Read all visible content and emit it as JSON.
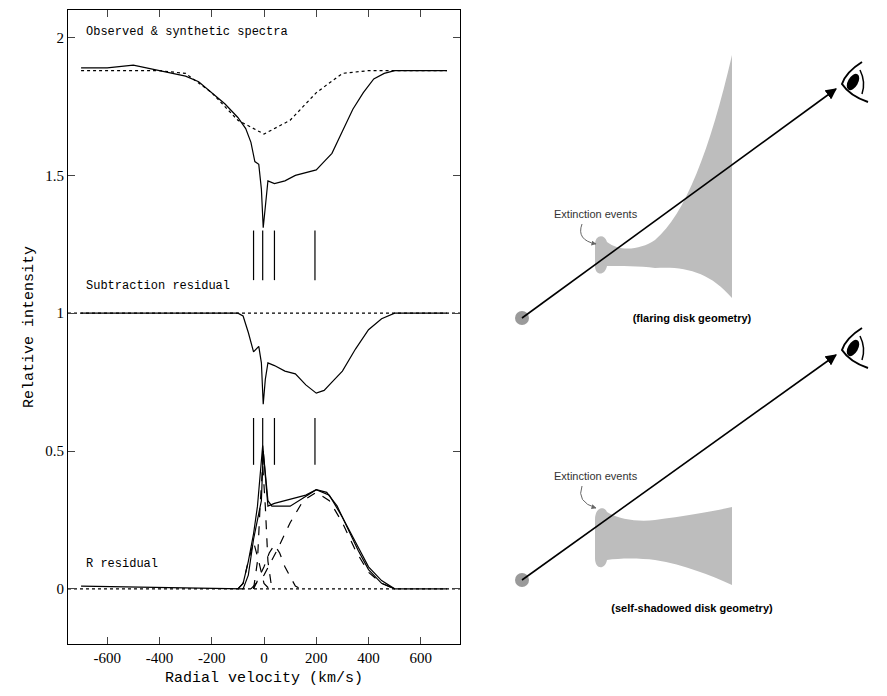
{
  "chart_data": {
    "type": "line",
    "xlabel": "Radial velocity (km/s)",
    "ylabel": "Relative intensity",
    "xlim": [
      -750,
      750
    ],
    "xticks": [
      -600,
      -400,
      -200,
      0,
      200,
      400,
      600
    ],
    "ylim": [
      -0.2,
      2.1
    ],
    "yticks": [
      0,
      0.5,
      1,
      1.5,
      2
    ],
    "grid": false,
    "annotations": [
      "Observed & synthetic spectra",
      "Subtraction residual",
      "R residual"
    ],
    "markers": {
      "x": [
        -40,
        -5,
        40,
        195
      ],
      "spans": [
        [
          1.12,
          1.3
        ],
        [
          0.45,
          0.62
        ]
      ]
    },
    "series": [
      {
        "color": "#000000",
        "line_style": "solid",
        "x": [
          -700,
          -600,
          -500,
          -400,
          -300,
          -250,
          -200,
          -150,
          -100,
          -70,
          -50,
          -35,
          -20,
          -10,
          -3,
          5,
          15,
          40,
          80,
          120,
          160,
          200,
          230,
          260,
          300,
          340,
          380,
          420,
          460,
          500,
          600,
          700
        ],
        "values": [
          1.89,
          1.89,
          1.9,
          1.88,
          1.86,
          1.84,
          1.8,
          1.76,
          1.71,
          1.67,
          1.62,
          1.55,
          1.54,
          1.45,
          1.31,
          1.4,
          1.48,
          1.47,
          1.48,
          1.5,
          1.51,
          1.52,
          1.55,
          1.58,
          1.66,
          1.74,
          1.8,
          1.85,
          1.87,
          1.88,
          1.88,
          1.88
        ]
      },
      {
        "color": "#000000",
        "line_style": "dotted",
        "x": [
          -700,
          -400,
          -300,
          -200,
          -100,
          0,
          100,
          200,
          300,
          400,
          700
        ],
        "values": [
          1.88,
          1.88,
          1.87,
          1.8,
          1.7,
          1.65,
          1.7,
          1.8,
          1.87,
          1.88,
          1.88
        ]
      },
      {
        "color": "#000000",
        "line_style": "solid",
        "x": [
          -700,
          -100,
          -80,
          -60,
          -40,
          -20,
          -10,
          -3,
          5,
          15,
          40,
          80,
          120,
          160,
          200,
          230,
          260,
          300,
          350,
          400,
          450,
          500,
          700
        ],
        "values": [
          1.0,
          1.0,
          0.99,
          0.93,
          0.86,
          0.88,
          0.82,
          0.67,
          0.76,
          0.82,
          0.81,
          0.79,
          0.78,
          0.74,
          0.71,
          0.72,
          0.75,
          0.79,
          0.87,
          0.94,
          0.98,
          1.0,
          1.0
        ]
      },
      {
        "color": "#000000",
        "line_style": "dotted",
        "x": [
          -750,
          750
        ],
        "values": [
          1,
          1
        ]
      },
      {
        "color": "#000000",
        "line_style": "solid",
        "x": [
          -700,
          -80,
          -60,
          -40,
          -25,
          -10,
          -3,
          5,
          15,
          40,
          80,
          120,
          160,
          200,
          240,
          280,
          320,
          360,
          400,
          450,
          500,
          700
        ],
        "values": [
          0.01,
          0.0,
          0.05,
          0.18,
          0.25,
          0.32,
          0.5,
          0.4,
          0.3,
          0.31,
          0.32,
          0.33,
          0.34,
          0.36,
          0.35,
          0.3,
          0.22,
          0.14,
          0.07,
          0.02,
          0.0,
          0.0
        ]
      },
      {
        "color": "#000000",
        "line_style": "solid",
        "x": [
          -100,
          -80,
          -60,
          -40,
          -25,
          -15,
          -5,
          5,
          15,
          30,
          60,
          100,
          150,
          200,
          250,
          300,
          350,
          400,
          450,
          500
        ],
        "values": [
          0.0,
          0.02,
          0.1,
          0.2,
          0.3,
          0.4,
          0.52,
          0.42,
          0.32,
          0.3,
          0.3,
          0.3,
          0.33,
          0.36,
          0.34,
          0.26,
          0.17,
          0.08,
          0.03,
          0.0
        ]
      },
      {
        "color": "#000000",
        "line_style": "dashed",
        "x": [
          -100,
          -80,
          -60,
          -40,
          -20,
          0,
          20
        ],
        "values": [
          0.0,
          0.02,
          0.1,
          0.17,
          0.1,
          0.02,
          0.0
        ]
      },
      {
        "color": "#000000",
        "line_style": "dashed",
        "x": [
          -40,
          -25,
          -15,
          -5,
          5,
          15,
          30
        ],
        "values": [
          0.0,
          0.1,
          0.3,
          0.45,
          0.3,
          0.1,
          0.0
        ]
      },
      {
        "color": "#000000",
        "line_style": "dashed",
        "x": [
          -40,
          0,
          20,
          40,
          60,
          80,
          120,
          140
        ],
        "values": [
          0.0,
          0.08,
          0.13,
          0.16,
          0.13,
          0.08,
          0.01,
          0.0
        ]
      },
      {
        "color": "#000000",
        "line_style": "dashed",
        "x": [
          -50,
          0,
          50,
          100,
          150,
          200,
          250,
          300,
          350,
          400,
          450,
          500
        ],
        "values": [
          0.0,
          0.05,
          0.14,
          0.24,
          0.32,
          0.35,
          0.32,
          0.24,
          0.14,
          0.06,
          0.02,
          0.0
        ]
      },
      {
        "color": "#000000",
        "line_style": "dotted",
        "x": [
          -750,
          750
        ],
        "values": [
          0,
          0
        ]
      }
    ]
  },
  "diagram": {
    "panels": [
      {
        "label": "Extinction events",
        "caption": "(flaring disk geometry)"
      },
      {
        "label": "Extinction events",
        "caption": "(self-shadowed disk geometry)"
      }
    ]
  }
}
